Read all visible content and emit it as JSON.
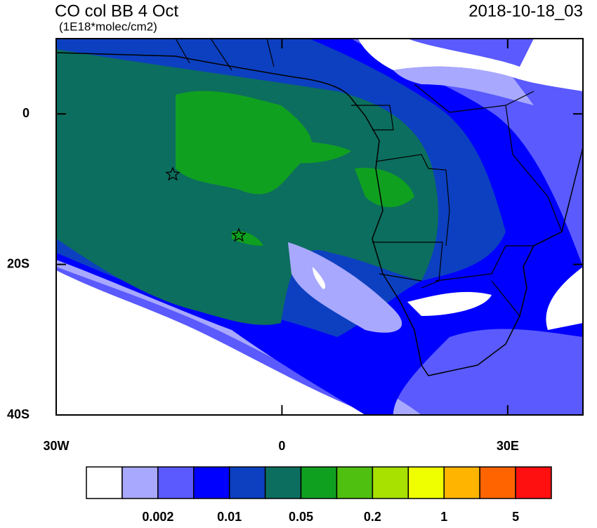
{
  "title": "CO col BB 4 Oct",
  "units": "(1E18*molec/cm2)",
  "timestamp": "2018-10-18_03",
  "map": {
    "xlim": [
      -30,
      40
    ],
    "ylim": [
      -40,
      10
    ],
    "xticks": [
      {
        "value": -30,
        "label": "30W"
      },
      0,
      {
        "value": 30,
        "label": "30E"
      }
    ],
    "yticks": [
      0,
      {
        "value": -20,
        "label": "20S"
      },
      {
        "value": -40,
        "label": "40S"
      }
    ]
  },
  "colorbar": {
    "colors": [
      "#ffffff",
      "#a8a8ff",
      "#5a5aff",
      "#0000ff",
      "#0c40c0",
      "#0c6e5e",
      "#10a020",
      "#50c010",
      "#a8e000",
      "#f0ff00",
      "#ffb400",
      "#ff6400",
      "#ff1010"
    ],
    "labels": [
      "0.002",
      "0.01",
      "0.05",
      "0.2",
      "1",
      "5"
    ]
  }
}
